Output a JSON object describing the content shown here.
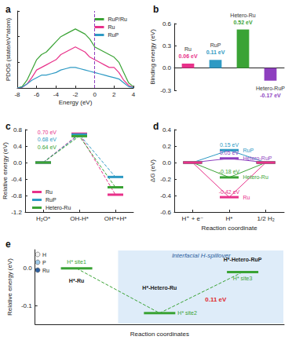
{
  "chart_data": [
    {
      "panel": "a",
      "type": "line",
      "x": [
        -8,
        -7.5,
        -7,
        -6.5,
        -6,
        -5.5,
        -5,
        -4.5,
        -4,
        -3.5,
        -3,
        -2.5,
        -2,
        -1.5,
        -1,
        -0.5,
        0,
        0.5,
        1,
        1.5,
        2,
        2.5,
        3,
        3.5,
        4
      ],
      "series": [
        {
          "name": "RuP/Ru",
          "color": "#3aa335",
          "values": [
            0,
            0.05,
            0.3,
            0.7,
            1.1,
            1.3,
            1.4,
            1.6,
            1.8,
            2.0,
            2.1,
            2.2,
            2.3,
            2.2,
            2.1,
            1.9,
            1.6,
            1.5,
            1.4,
            1.3,
            1.2,
            1.0,
            0.6,
            0.2,
            0.05
          ]
        },
        {
          "name": "Ru",
          "color": "#e8318a",
          "values": [
            0,
            0.02,
            0.15,
            0.4,
            0.7,
            0.8,
            0.9,
            1.0,
            1.1,
            1.3,
            1.4,
            1.5,
            1.6,
            1.5,
            1.4,
            1.2,
            1.1,
            1.0,
            0.9,
            0.8,
            0.8,
            0.6,
            0.3,
            0.1,
            0.02
          ]
        },
        {
          "name": "RuP",
          "color": "#2e9ac4",
          "values": [
            0,
            0.03,
            0.15,
            0.3,
            0.4,
            0.5,
            0.5,
            0.55,
            0.6,
            0.7,
            0.75,
            0.8,
            0.8,
            0.75,
            0.7,
            0.65,
            0.6,
            0.55,
            0.5,
            0.45,
            0.4,
            0.35,
            0.2,
            0.05,
            0.02
          ]
        }
      ],
      "xlabel": "Energy (eV)",
      "ylabel": "PDOS (state/eV*atom)",
      "xlim": [
        -8,
        4
      ],
      "xticks": [
        -8,
        -6,
        -4,
        -2,
        0,
        2,
        4
      ],
      "ylim": [
        0,
        3
      ],
      "yticks": [
        0,
        1,
        2,
        3
      ],
      "tick_labels": "x",
      "legend": "upper right",
      "vline": 0
    },
    {
      "panel": "b",
      "type": "bar",
      "categories": [
        "Ru",
        "RuP",
        "Hetero-Ru",
        "Hetero-RuP"
      ],
      "values": [
        0.06,
        0.11,
        0.52,
        -0.17
      ],
      "value_labels": [
        "0.06 eV",
        "0.11 eV",
        "0.52 eV",
        "-0.17 eV"
      ],
      "colors": [
        "#e8318a",
        "#2e9ac4",
        "#3aa335",
        "#8e3fbf"
      ],
      "ylabel": "Binding energy (eV)",
      "ylim": [
        -0.3,
        0.6
      ],
      "yticks": [
        -0.3,
        {
          "value": 0,
          "label": "0.0"
        },
        0.3,
        0.6
      ],
      "data_labels": true,
      "tick_labels": "y"
    },
    {
      "panel": "c",
      "type": "line",
      "categories": [
        "H₂O*",
        "OH-H*",
        "OH*+H*"
      ],
      "series": [
        {
          "name": "Ru",
          "color": "#e8318a",
          "values": [
            0,
            0.7,
            -0.78
          ],
          "value_labels": [
            null,
            "0.70 eV",
            null
          ]
        },
        {
          "name": "RuP",
          "color": "#2e9ac4",
          "values": [
            0,
            0.68,
            -0.35
          ],
          "value_labels": [
            null,
            "0.68 eV",
            null
          ]
        },
        {
          "name": "Hetero-Ru",
          "color": "#3aa335",
          "values": [
            0,
            0.64,
            -0.6
          ],
          "value_labels": [
            null,
            "0.64 eV",
            null
          ]
        }
      ],
      "ylabel": "Relative energy (eV)",
      "ylim": [
        -1.2,
        0.8
      ],
      "yticks": [
        -1.2,
        -0.8,
        -0.4,
        {
          "value": 0,
          "label": "0.0"
        },
        0.4,
        0.8
      ],
      "legend": "lower left",
      "line_style": "dashed",
      "marker": "level"
    },
    {
      "panel": "d",
      "type": "line",
      "categories": [
        "H⁺ + e⁻",
        "H*",
        "1/2 H₂"
      ],
      "series": [
        {
          "name": "RuP",
          "color": "#2e9ac4",
          "values": [
            0,
            0.15,
            0
          ],
          "value_labels": [
            null,
            "0.15 eV",
            null
          ]
        },
        {
          "name": "Hetero-RuP",
          "color": "#8e3fbf",
          "values": [
            0,
            0.05,
            0
          ],
          "value_labels": [
            null,
            "0.05 eV",
            null
          ]
        },
        {
          "name": "Hetero-Ru",
          "color": "#3aa335",
          "values": [
            0,
            -0.18,
            0
          ],
          "value_labels": [
            null,
            "-0.18 eV",
            null
          ]
        },
        {
          "name": "Ru",
          "color": "#e8318a",
          "values": [
            0,
            -0.42,
            0
          ],
          "value_labels": [
            null,
            "-0.42 eV",
            null
          ]
        }
      ],
      "xlabel": "Reaction coordinate",
      "ylabel": "ΔG (eV)",
      "ylim": [
        -0.6,
        0.4
      ],
      "yticks": [
        -0.6,
        -0.4,
        -0.2,
        {
          "value": 0,
          "label": "0.0"
        },
        0.2,
        0.4
      ],
      "line_style": "solid",
      "marker": "level"
    },
    {
      "panel": "e",
      "type": "line",
      "categories": [
        "H* site1",
        "H* site2",
        "H* site3"
      ],
      "values": [
        0,
        -0.12,
        -0.01
      ],
      "color": "#3aa335",
      "structures": [
        "H*-Ru",
        "H*-Hetero-Ru",
        "H*-Hetero-RuP"
      ],
      "region_label": "Interfacial H-spillover",
      "annotations": [
        {
          "text": "0.11 eV",
          "color": "#e0262b"
        }
      ],
      "atoms": [
        {
          "name": "H",
          "color": "#f2f2f2"
        },
        {
          "name": "P",
          "color": "#9ec9e8"
        },
        {
          "name": "Ru",
          "color": "#2c5f9e"
        }
      ],
      "xlabel": "Reaction coordinates",
      "ylabel": "Relative energy (eV)",
      "ylim": [
        -0.15,
        0.05
      ],
      "yticks": [
        -0.1,
        {
          "value": 0,
          "label": "0.0"
        }
      ],
      "tick_labels": "y",
      "line_style": "dashed",
      "marker": "level"
    }
  ]
}
